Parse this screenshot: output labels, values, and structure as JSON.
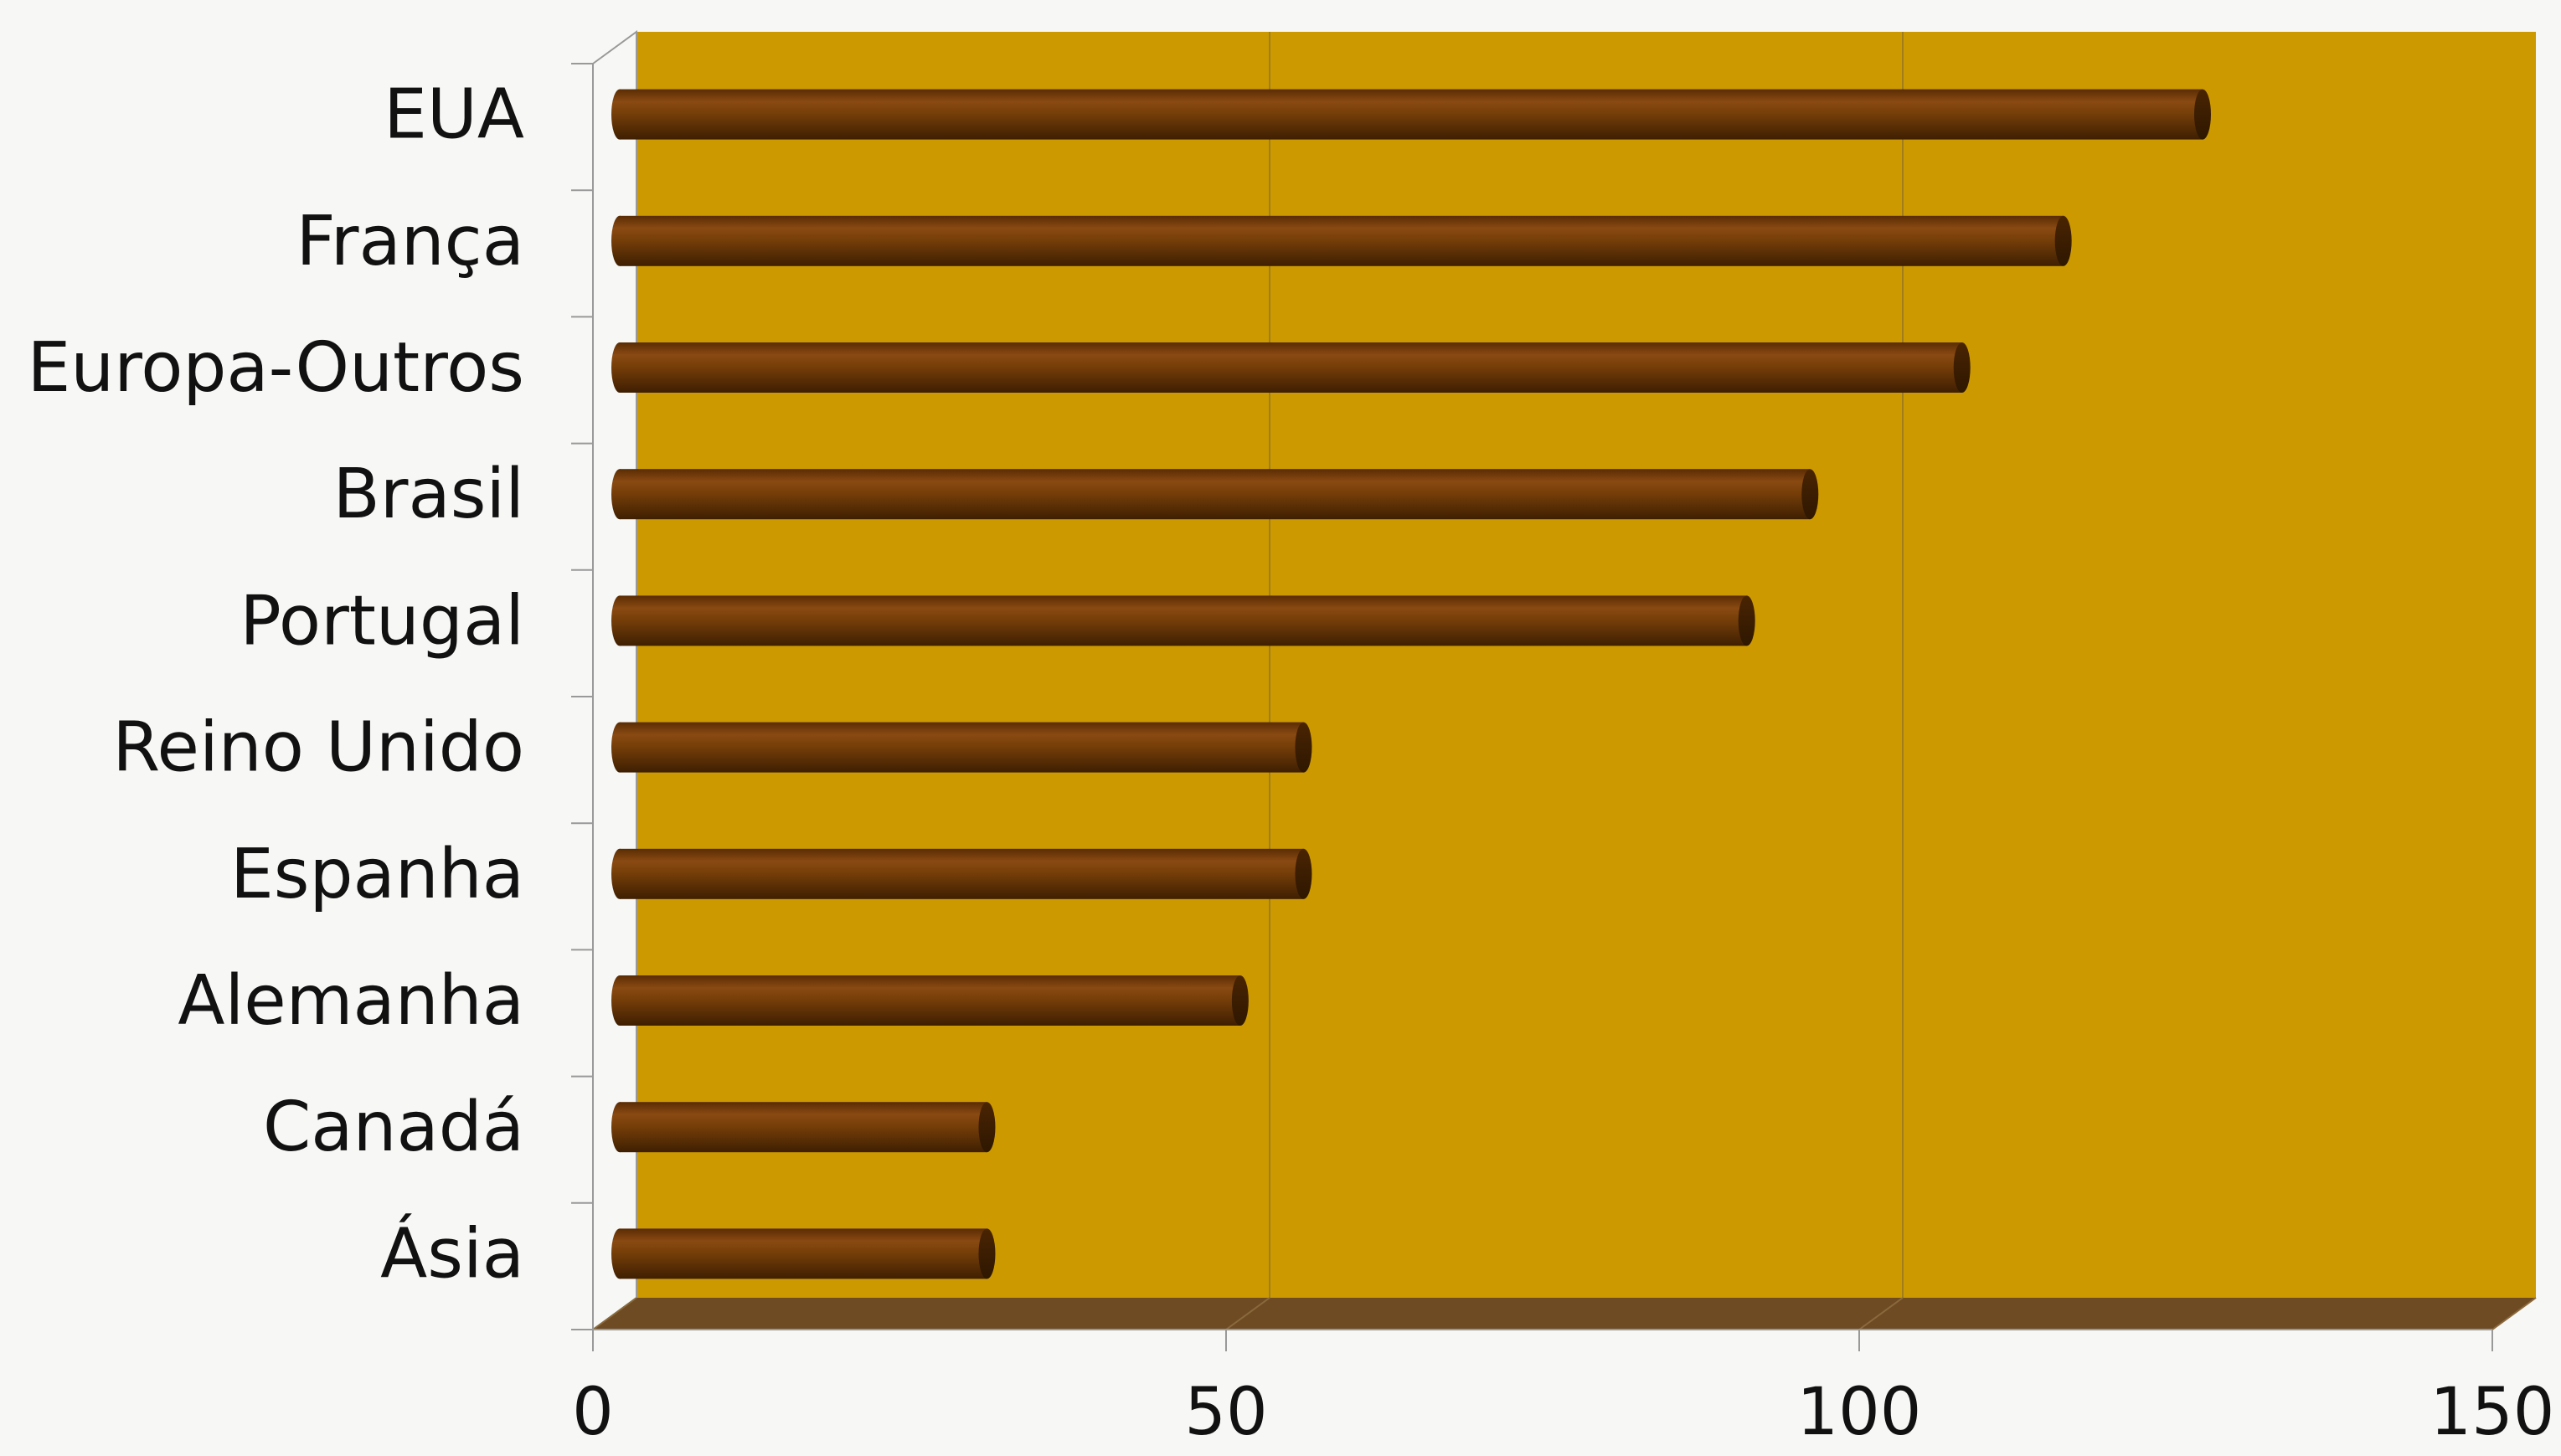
{
  "chart_data": {
    "type": "bar",
    "orientation": "horizontal",
    "style": "3d-cylinder",
    "categories": [
      "EUA",
      "França",
      "Europa-Outros",
      "Brasil",
      "Portugal",
      "Reino Unido",
      "Espanha",
      "Alemanha",
      "Canadá",
      "Ásia"
    ],
    "values": [
      125,
      114,
      106,
      94,
      89,
      54,
      54,
      49,
      29,
      29
    ],
    "title": "",
    "xlabel": "",
    "ylabel": "",
    "xlim": [
      0,
      150
    ],
    "x_ticks": [
      0,
      50,
      100,
      150
    ],
    "grid": "vertical",
    "legend": "none",
    "colors": {
      "plot_background": "#cc9a00",
      "floor": "#6f4b24",
      "bar": "#6b3705",
      "bar_highlight": "#8a4a12",
      "bar_shadow": "#3e1f02",
      "gridline": "#a07c1c",
      "axis": "#999999",
      "text": "#111111"
    }
  }
}
